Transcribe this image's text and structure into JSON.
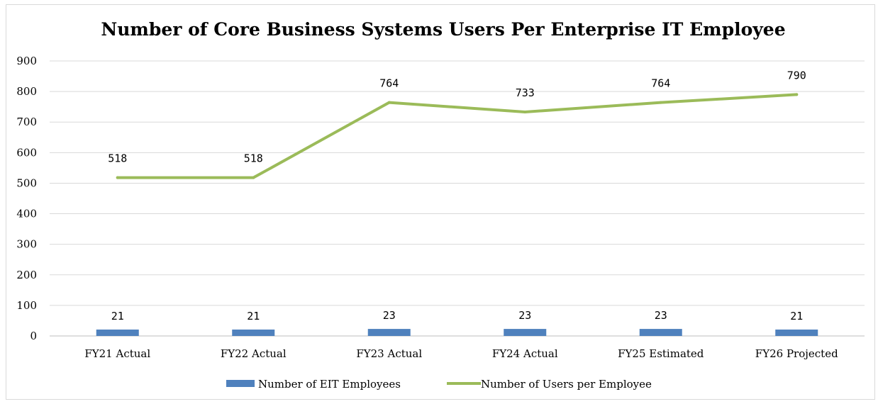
{
  "chart_data": {
    "type": "bar+line",
    "title": "Number of Core Business Systems Users Per Enterprise IT Employee",
    "xlabel": "",
    "ylabel": "",
    "ylim": [
      0,
      900
    ],
    "yticks": [
      0,
      100,
      200,
      300,
      400,
      500,
      600,
      700,
      800,
      900
    ],
    "grid": true,
    "legend_position": "bottom",
    "categories": [
      "FY21 Actual",
      "FY22 Actual",
      "FY23 Actual",
      "FY24 Actual",
      "FY25 Estimated",
      "FY26 Projected"
    ],
    "series": [
      {
        "name": "Number of EIT Employees",
        "type": "bar",
        "color": "#4f81bd",
        "values": [
          21,
          21,
          23,
          23,
          23,
          21
        ]
      },
      {
        "name": "Number of Users per Employee",
        "type": "line",
        "color": "#9bbb59",
        "values": [
          518,
          518,
          764,
          733,
          764,
          790
        ]
      }
    ]
  }
}
